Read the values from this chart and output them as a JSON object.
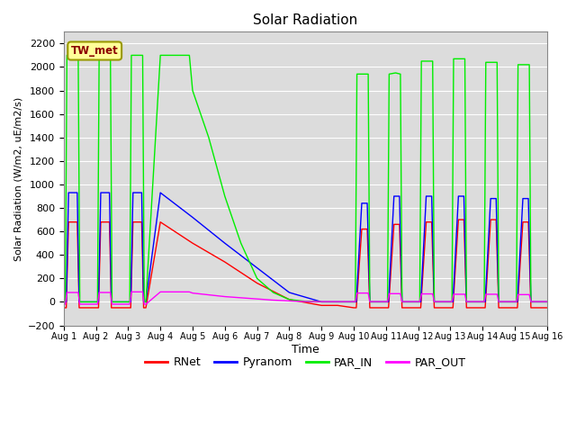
{
  "title": "Solar Radiation",
  "ylabel": "Solar Radiation (W/m2, uE/m2/s)",
  "xlabel": "Time",
  "ylim": [
    -200,
    2300
  ],
  "yticks": [
    -200,
    0,
    200,
    400,
    600,
    800,
    1000,
    1200,
    1400,
    1600,
    1800,
    2000,
    2200
  ],
  "bg_color": "#dcdcdc",
  "fig_color": "#ffffff",
  "station_label": "TW_met",
  "legend": [
    "RNet",
    "Pyranom",
    "PAR_IN",
    "PAR_OUT"
  ],
  "colors": {
    "RNet": "#ff0000",
    "Pyranom": "#0000ff",
    "PAR_IN": "#00ee00",
    "PAR_OUT": "#ff00ff"
  },
  "x_days": [
    1,
    2,
    3,
    4,
    5,
    6,
    7,
    8,
    9,
    10,
    11,
    12,
    13,
    14,
    15,
    16
  ],
  "x_tick_labels": [
    "Aug 1",
    "Aug 2",
    "Aug 3",
    "Aug 4",
    "Aug 5",
    "Aug 6",
    "Aug 7",
    "Aug 8",
    "Aug 9",
    "Aug 10",
    "Aug 11",
    "Aug 12",
    "Aug 13",
    "Aug 14",
    "Aug 15",
    "Aug 16"
  ],
  "series": {
    "RNet": {
      "x": [
        1.0,
        1.08,
        1.15,
        1.42,
        1.48,
        1.55,
        2.0,
        2.08,
        2.15,
        2.42,
        2.48,
        2.55,
        3.0,
        3.08,
        3.15,
        3.42,
        3.48,
        3.55,
        4.0,
        5.0,
        6.0,
        7.0,
        8.0,
        9.0,
        9.5,
        10.0,
        10.08,
        10.25,
        10.42,
        10.5,
        11.0,
        11.08,
        11.25,
        11.42,
        11.5,
        12.0,
        12.08,
        12.25,
        12.42,
        12.5,
        13.0,
        13.08,
        13.25,
        13.42,
        13.5,
        14.0,
        14.08,
        14.25,
        14.42,
        14.5,
        15.0,
        15.08,
        15.25,
        15.42,
        15.5,
        16.0
      ],
      "y": [
        -50,
        -50,
        680,
        680,
        -50,
        -50,
        -50,
        -50,
        680,
        680,
        -50,
        -50,
        -50,
        -50,
        680,
        680,
        -50,
        -50,
        680,
        500,
        340,
        160,
        20,
        -30,
        -30,
        -50,
        -50,
        620,
        620,
        -50,
        -50,
        -50,
        660,
        660,
        -50,
        -50,
        -50,
        680,
        680,
        -50,
        -50,
        -50,
        700,
        700,
        -50,
        -50,
        -50,
        700,
        700,
        -50,
        -50,
        -50,
        680,
        680,
        -50,
        -50
      ]
    },
    "Pyranom": {
      "x": [
        1.0,
        1.08,
        1.15,
        1.42,
        1.48,
        1.55,
        2.0,
        2.08,
        2.15,
        2.42,
        2.48,
        2.55,
        3.0,
        3.08,
        3.15,
        3.42,
        3.48,
        3.55,
        4.0,
        5.0,
        6.0,
        7.0,
        8.0,
        9.0,
        9.5,
        10.0,
        10.08,
        10.25,
        10.42,
        10.5,
        11.0,
        11.08,
        11.25,
        11.42,
        11.5,
        12.0,
        12.08,
        12.25,
        12.42,
        12.5,
        13.0,
        13.08,
        13.25,
        13.42,
        13.5,
        14.0,
        14.08,
        14.25,
        14.42,
        14.5,
        15.0,
        15.08,
        15.25,
        15.42,
        15.5,
        16.0
      ],
      "y": [
        0,
        0,
        930,
        930,
        0,
        0,
        0,
        0,
        930,
        930,
        0,
        0,
        0,
        0,
        930,
        930,
        0,
        0,
        930,
        720,
        500,
        290,
        80,
        0,
        0,
        0,
        0,
        840,
        840,
        0,
        0,
        0,
        900,
        900,
        0,
        0,
        0,
        900,
        900,
        0,
        0,
        0,
        900,
        900,
        0,
        0,
        0,
        880,
        880,
        0,
        0,
        0,
        880,
        880,
        0,
        0
      ]
    },
    "PAR_IN": {
      "x": [
        1.0,
        1.05,
        1.1,
        1.45,
        1.5,
        1.55,
        2.0,
        2.05,
        2.1,
        2.45,
        2.5,
        2.55,
        3.0,
        3.05,
        3.1,
        3.45,
        3.5,
        3.55,
        4.0,
        4.9,
        5.0,
        5.5,
        6.0,
        6.5,
        7.0,
        7.5,
        8.0,
        8.5,
        9.0,
        9.5,
        10.0,
        10.05,
        10.1,
        10.45,
        10.5,
        10.55,
        11.0,
        11.05,
        11.1,
        11.3,
        11.45,
        11.5,
        11.55,
        12.0,
        12.05,
        12.1,
        12.45,
        12.5,
        12.55,
        13.0,
        13.05,
        13.1,
        13.45,
        13.5,
        13.55,
        14.0,
        14.05,
        14.1,
        14.45,
        14.5,
        14.55,
        15.0,
        15.05,
        15.1,
        15.45,
        15.5,
        15.55,
        16.0
      ],
      "y": [
        0,
        0,
        2100,
        2100,
        0,
        0,
        0,
        0,
        2100,
        2100,
        0,
        0,
        0,
        0,
        2100,
        2100,
        0,
        0,
        2100,
        2100,
        1800,
        1400,
        900,
        500,
        200,
        80,
        20,
        5,
        0,
        0,
        0,
        0,
        1940,
        1940,
        0,
        0,
        0,
        0,
        1940,
        1950,
        1940,
        0,
        0,
        0,
        0,
        2050,
        2050,
        0,
        0,
        0,
        0,
        2070,
        2070,
        0,
        0,
        0,
        0,
        2040,
        2040,
        0,
        0,
        0,
        0,
        2020,
        2020,
        0,
        0,
        0
      ]
    },
    "PAR_OUT": {
      "x": [
        1.0,
        1.05,
        1.1,
        1.45,
        1.5,
        1.55,
        2.0,
        2.05,
        2.1,
        2.45,
        2.5,
        2.55,
        3.0,
        3.05,
        3.1,
        3.45,
        3.5,
        3.55,
        4.0,
        4.9,
        5.0,
        5.5,
        6.0,
        6.5,
        7.0,
        7.5,
        8.0,
        8.5,
        9.0,
        9.5,
        10.0,
        10.05,
        10.1,
        10.45,
        10.5,
        10.55,
        11.0,
        11.05,
        11.1,
        11.45,
        11.5,
        11.55,
        12.0,
        12.05,
        12.1,
        12.45,
        12.5,
        12.55,
        13.0,
        13.05,
        13.1,
        13.45,
        13.5,
        13.55,
        14.0,
        14.05,
        14.1,
        14.45,
        14.5,
        14.55,
        15.0,
        15.05,
        15.1,
        15.45,
        15.5,
        15.55,
        16.0
      ],
      "y": [
        -20,
        -20,
        80,
        80,
        -20,
        -20,
        -20,
        -20,
        80,
        80,
        -20,
        -20,
        -20,
        -20,
        85,
        85,
        -20,
        -20,
        85,
        85,
        75,
        60,
        45,
        35,
        25,
        15,
        8,
        3,
        2,
        2,
        2,
        2,
        75,
        75,
        2,
        2,
        2,
        2,
        70,
        70,
        2,
        2,
        2,
        2,
        68,
        68,
        2,
        2,
        2,
        2,
        65,
        65,
        2,
        2,
        2,
        2,
        65,
        65,
        2,
        2,
        2,
        2,
        62,
        62,
        2,
        2,
        2
      ]
    }
  }
}
